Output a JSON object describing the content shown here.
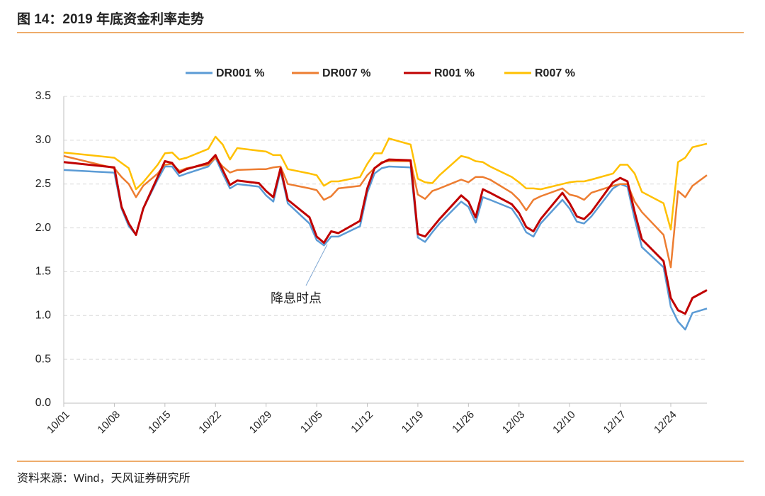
{
  "chart_data": {
    "type": "line",
    "title": "图 14：2019 年底资金利率走势",
    "source": "资料来源：Wind，天风证券研究所",
    "annotation": "降息时点",
    "x": [
      "10/01",
      "10/08",
      "10/09",
      "10/10",
      "10/11",
      "10/12",
      "10/14",
      "10/15",
      "10/16",
      "10/17",
      "10/18",
      "10/21",
      "10/22",
      "10/23",
      "10/24",
      "10/25",
      "10/28",
      "10/29",
      "10/30",
      "10/31",
      "11/01",
      "11/04",
      "11/05",
      "11/06",
      "11/07",
      "11/08",
      "11/11",
      "11/12",
      "11/13",
      "11/14",
      "11/15",
      "11/18",
      "11/19",
      "11/20",
      "11/21",
      "11/22",
      "11/25",
      "11/26",
      "11/27",
      "11/28",
      "11/29",
      "12/02",
      "12/03",
      "12/04",
      "12/05",
      "12/06",
      "12/09",
      "12/10",
      "12/11",
      "12/12",
      "12/13",
      "12/16",
      "12/17",
      "12/18",
      "12/19",
      "12/20",
      "12/23",
      "12/24",
      "12/25",
      "12/26",
      "12/27",
      "12/29"
    ],
    "series": [
      {
        "name": "DR001 %",
        "color": "#5B9BD5",
        "values": [
          2.66,
          2.63,
          2.22,
          2.02,
          1.92,
          2.22,
          2.55,
          2.7,
          2.7,
          2.59,
          2.62,
          2.7,
          2.8,
          2.62,
          2.45,
          2.5,
          2.47,
          2.37,
          2.3,
          2.65,
          2.28,
          2.05,
          1.86,
          1.8,
          1.9,
          1.9,
          2.02,
          2.4,
          2.62,
          2.68,
          2.7,
          2.69,
          1.89,
          1.84,
          1.95,
          2.05,
          2.3,
          2.24,
          2.06,
          2.35,
          2.32,
          2.22,
          2.1,
          1.95,
          1.9,
          2.05,
          2.32,
          2.22,
          2.07,
          2.05,
          2.13,
          2.45,
          2.5,
          2.47,
          2.1,
          1.78,
          1.55,
          1.1,
          0.93,
          0.84,
          1.03,
          1.08
        ]
      },
      {
        "name": "DR007 %",
        "color": "#ED7D31",
        "values": [
          2.82,
          2.68,
          2.58,
          2.5,
          2.35,
          2.48,
          2.62,
          2.72,
          2.73,
          2.65,
          2.68,
          2.72,
          2.8,
          2.7,
          2.63,
          2.66,
          2.67,
          2.67,
          2.69,
          2.7,
          2.5,
          2.45,
          2.43,
          2.32,
          2.36,
          2.45,
          2.48,
          2.6,
          2.68,
          2.75,
          2.76,
          2.76,
          2.38,
          2.33,
          2.42,
          2.45,
          2.55,
          2.52,
          2.58,
          2.58,
          2.55,
          2.4,
          2.32,
          2.2,
          2.32,
          2.36,
          2.45,
          2.38,
          2.36,
          2.32,
          2.4,
          2.48,
          2.5,
          2.5,
          2.3,
          2.18,
          1.92,
          1.55,
          2.42,
          2.35,
          2.48,
          2.6
        ]
      },
      {
        "name": "R001 %",
        "color": "#C00000",
        "values": [
          2.75,
          2.69,
          2.24,
          2.05,
          1.92,
          2.22,
          2.58,
          2.76,
          2.74,
          2.63,
          2.67,
          2.74,
          2.83,
          2.66,
          2.49,
          2.54,
          2.51,
          2.42,
          2.35,
          2.68,
          2.32,
          2.12,
          1.9,
          1.83,
          1.96,
          1.94,
          2.08,
          2.45,
          2.68,
          2.74,
          2.78,
          2.77,
          1.93,
          1.9,
          2.0,
          2.1,
          2.37,
          2.3,
          2.12,
          2.44,
          2.4,
          2.27,
          2.17,
          2.01,
          1.96,
          2.1,
          2.4,
          2.28,
          2.13,
          2.1,
          2.18,
          2.52,
          2.57,
          2.53,
          2.18,
          1.87,
          1.62,
          1.2,
          1.06,
          1.02,
          1.2,
          1.29
        ]
      },
      {
        "name": "R007 %",
        "color": "#FFC000",
        "values": [
          2.86,
          2.8,
          2.74,
          2.68,
          2.44,
          2.52,
          2.72,
          2.85,
          2.86,
          2.78,
          2.8,
          2.9,
          3.04,
          2.95,
          2.78,
          2.91,
          2.88,
          2.87,
          2.83,
          2.83,
          2.67,
          2.62,
          2.6,
          2.48,
          2.53,
          2.53,
          2.58,
          2.73,
          2.85,
          2.85,
          3.02,
          2.95,
          2.56,
          2.52,
          2.51,
          2.6,
          2.82,
          2.8,
          2.76,
          2.75,
          2.7,
          2.58,
          2.52,
          2.45,
          2.45,
          2.44,
          2.5,
          2.52,
          2.53,
          2.53,
          2.55,
          2.62,
          2.72,
          2.72,
          2.62,
          2.41,
          2.28,
          1.98,
          2.75,
          2.8,
          2.92,
          2.96
        ]
      }
    ],
    "xlim": [
      "10/01",
      "12/29"
    ],
    "xticks": [
      "10/01",
      "10/08",
      "10/15",
      "10/22",
      "10/29",
      "11/05",
      "11/12",
      "11/19",
      "11/26",
      "12/03",
      "12/10",
      "12/17",
      "12/24"
    ],
    "ylim": [
      0,
      3.5
    ],
    "yticks": [
      {
        "value": 0,
        "label": "0.0"
      },
      0.5,
      {
        "value": 1,
        "label": "1.0"
      },
      1.5,
      {
        "value": 2,
        "label": "2.0"
      },
      2.5,
      {
        "value": 3,
        "label": "3.0"
      },
      3.5
    ],
    "grid": true,
    "legend": "top"
  }
}
